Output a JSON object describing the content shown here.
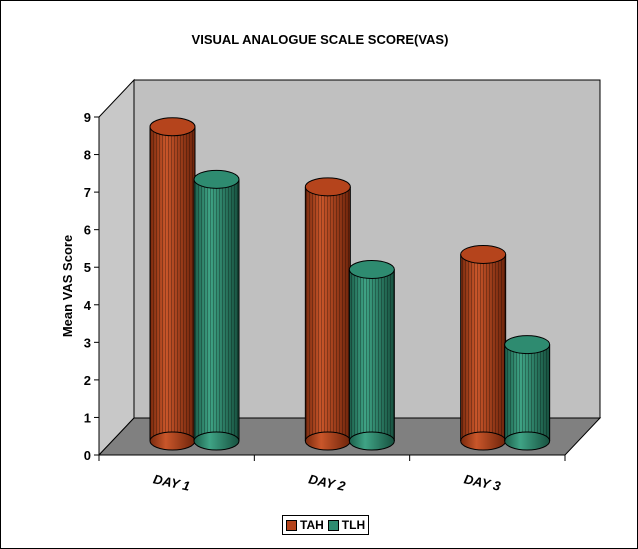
{
  "chart_data": {
    "type": "bar",
    "title": "VISUAL ANALOGUE SCALE SCORE(VAS)",
    "xlabel": "",
    "ylabel": "Mean VAS Score",
    "categories": [
      "DAY 1",
      "DAY 2",
      "DAY 3"
    ],
    "series": [
      {
        "name": "TAH",
        "values": [
          8.9,
          7.3,
          5.5
        ],
        "color": "#b5441c"
      },
      {
        "name": "TLH",
        "values": [
          7.5,
          5.1,
          3.1
        ],
        "color": "#2e8b70"
      }
    ],
    "ylim": [
      0,
      9
    ],
    "yticks": [
      "0",
      "1",
      "2",
      "3",
      "4",
      "5",
      "6",
      "7",
      "8",
      "9"
    ],
    "legend_position": "bottom",
    "style": "3d-cylinder",
    "wall_color": "#c0c0c0",
    "floor_color": "#808080"
  }
}
